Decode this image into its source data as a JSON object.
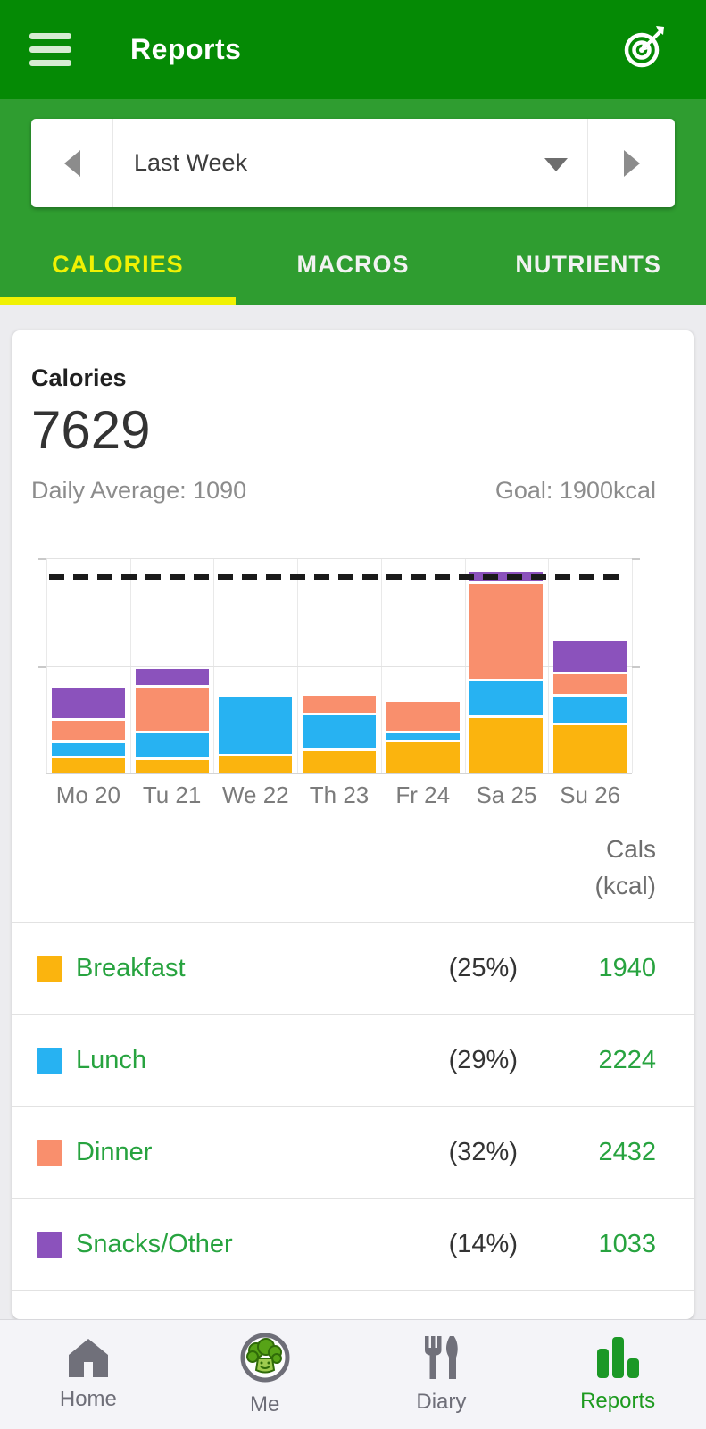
{
  "header": {
    "title": "Reports"
  },
  "period_selector": {
    "value": "Last Week"
  },
  "tabs": [
    {
      "label": "CALORIES",
      "active": true
    },
    {
      "label": "MACROS",
      "active": false
    },
    {
      "label": "NUTRIENTS",
      "active": false
    }
  ],
  "summary": {
    "title": "Calories",
    "total": "7629",
    "daily_average": "Daily Average: 1090",
    "goal": "Goal: 1900kcal"
  },
  "chart_data": {
    "type": "bar",
    "stacked": true,
    "title": "Weekly calories by meal (stacked bars)",
    "categories": [
      "Mo 20",
      "Tu 21",
      "We 22",
      "Th 23",
      "Fr 24",
      "Sa 25",
      "Su 26"
    ],
    "series": [
      {
        "name": "Breakfast",
        "color": "#FBB40E",
        "values": [
          145,
          130,
          160,
          210,
          300,
          530,
          465
        ]
      },
      {
        "name": "Lunch",
        "color": "#27B2F2",
        "values": [
          175,
          285,
          600,
          375,
          115,
          380,
          294
        ]
      },
      {
        "name": "Dinner",
        "color": "#F98F6D",
        "values": [
          240,
          460,
          0,
          215,
          320,
          955,
          242
        ]
      },
      {
        "name": "Snacks/Other",
        "color": "#8B52BC",
        "values": [
          340,
          205,
          0,
          0,
          0,
          145,
          343
        ]
      }
    ],
    "goal_line_kcal": 1900,
    "ylim": [
      0,
      2070
    ],
    "unit": "kcal",
    "xlabel": "",
    "ylabel": "",
    "legend_position": "table-below",
    "grid": "horizontal lines at top and middle with edge ticks; vertical category separators"
  },
  "legend_table": {
    "header_line1": "Cals",
    "header_line2": "(kcal)",
    "rows": [
      {
        "label": "Breakfast",
        "percent": "(25%)",
        "value": "1940",
        "color": "#FBB40E"
      },
      {
        "label": "Lunch",
        "percent": "(29%)",
        "value": "2224",
        "color": "#27B2F2"
      },
      {
        "label": "Dinner",
        "percent": "(32%)",
        "value": "2432",
        "color": "#F98F6D"
      },
      {
        "label": "Snacks/Other",
        "percent": "(14%)",
        "value": "1033",
        "color": "#8B52BC"
      }
    ]
  },
  "bottom_nav": {
    "items": [
      {
        "label": "Home",
        "icon": "home-icon",
        "active": false
      },
      {
        "label": "Me",
        "icon": "broccoli-avatar-icon",
        "active": false
      },
      {
        "label": "Diary",
        "icon": "fork-knife-icon",
        "active": false
      },
      {
        "label": "Reports",
        "icon": "bar-chart-icon",
        "active": true
      }
    ]
  },
  "colors": {
    "header_green": "#058A05",
    "subheader_green": "#2F9D30",
    "tab_active_yellow": "#F0F103",
    "accent_green_text": "#27A33F",
    "nav_active_green": "#1D9A1F",
    "goal_line": "#1A1A1A"
  }
}
